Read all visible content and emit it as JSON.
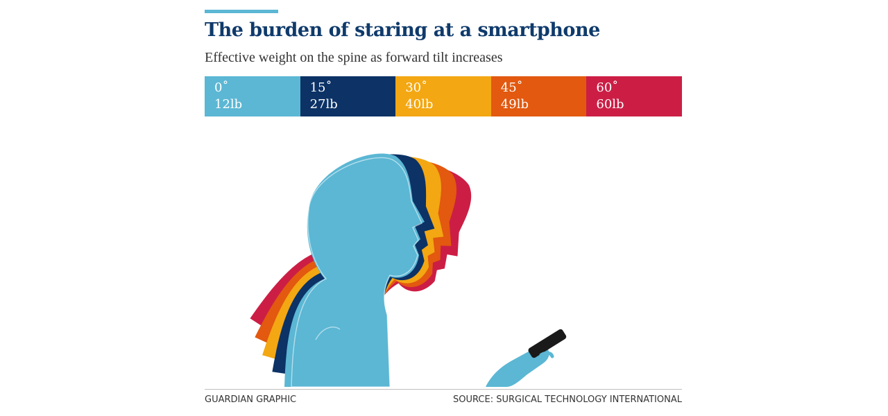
{
  "header": {
    "title": "The burden of staring at a smartphone",
    "subtitle": "Effective weight on the spine as forward tilt increases"
  },
  "chart_data": {
    "type": "table",
    "title": "The burden of staring at a smartphone",
    "subtitle": "Effective weight on the spine as forward tilt increases",
    "categories": [
      "0˚",
      "15˚",
      "30˚",
      "45˚",
      "60˚"
    ],
    "values": [
      12,
      27,
      40,
      49,
      60
    ],
    "value_labels": [
      "12lb",
      "27lb",
      "40lb",
      "49lb",
      "60lb"
    ],
    "units": "lb",
    "colors": [
      "#5bb7d4",
      "#0c3266",
      "#f3a712",
      "#e2590f",
      "#cc1e45"
    ],
    "legend_position": "top"
  },
  "illustration": {
    "icon": "head-tilt-silhouette-icon",
    "phone_icon": "smartphone-icon",
    "phone_color": "#1a1a1a"
  },
  "footer": {
    "credit": "GUARDIAN GRAPHIC",
    "source": "SOURCE: SURGICAL TECHNOLOGY INTERNATIONAL"
  }
}
